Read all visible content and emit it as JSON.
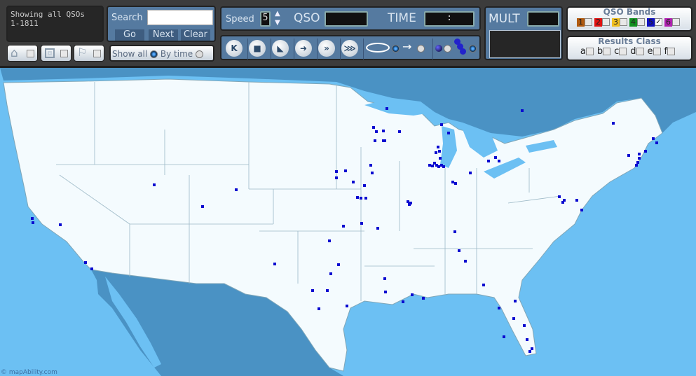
{
  "status": {
    "line1": "Showing all QSOs",
    "line2": "1-1811"
  },
  "search": {
    "label": "Search",
    "value": "",
    "go": "Go",
    "next": "Next",
    "clear": "Clear"
  },
  "view_buttons": [
    {
      "icon": "home-icon"
    },
    {
      "icon": "zoom-box-icon"
    },
    {
      "icon": "flag-icon"
    }
  ],
  "show_mode": {
    "show_all": "Show all",
    "by_time": "By time",
    "selected": "show_all"
  },
  "playback": {
    "speed_label": "Speed",
    "speed_value": "5",
    "qso_label": "QSO",
    "qso_value": "",
    "time_label": "TIME",
    "time_value": ":",
    "buttons": [
      {
        "icon": "skip-to-start-icon",
        "glyph": "K"
      },
      {
        "icon": "stop-icon",
        "glyph": "■"
      },
      {
        "icon": "step-icon",
        "glyph": "◣"
      },
      {
        "icon": "play-icon",
        "glyph": "➜"
      },
      {
        "icon": "fast-forward-icon",
        "glyph": "»"
      },
      {
        "icon": "fastest-forward-icon",
        "glyph": "⋙"
      }
    ],
    "loop_selected": true,
    "arrow_selected": false,
    "single_dot_selected": false,
    "multi_dot_selected": true
  },
  "mult": {
    "label": "MULT",
    "value": ""
  },
  "bands": {
    "title": "QSO Bands",
    "items": [
      {
        "label": "1",
        "color": "#b05a10",
        "checked": false
      },
      {
        "label": "2",
        "color": "#e01010",
        "checked": false
      },
      {
        "label": "3",
        "color": "#f0c020",
        "checked": false
      },
      {
        "label": "4",
        "color": "#109020",
        "checked": false
      },
      {
        "label": "5",
        "color": "#1010c0",
        "checked": true
      },
      {
        "label": "6",
        "color": "#b020b0",
        "checked": false
      }
    ]
  },
  "results_class": {
    "title": "Results Class",
    "items": [
      {
        "label": "a"
      },
      {
        "label": "b"
      },
      {
        "label": "c"
      },
      {
        "label": "d"
      },
      {
        "label": "e"
      },
      {
        "label": "f"
      }
    ]
  },
  "map": {
    "credit": "© mapAbility.com",
    "colors": {
      "ocean": "#6cc0f3",
      "land_us": "#f4fbfe",
      "land_other": "#4a92c4",
      "dot": "#0a0ad0"
    }
  }
}
